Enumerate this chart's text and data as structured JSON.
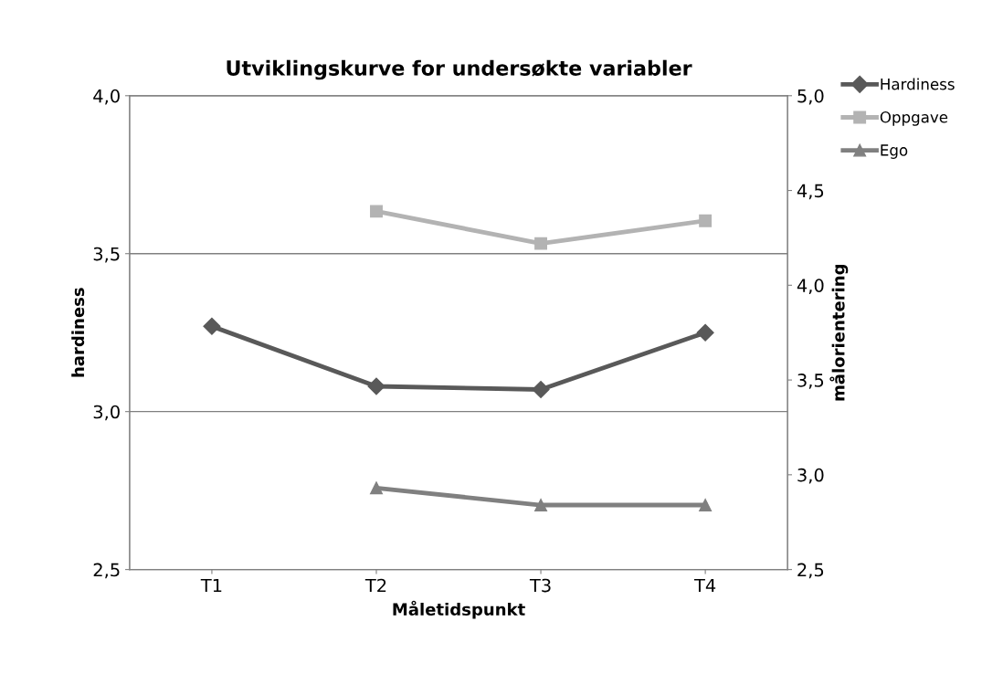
{
  "chart_data": {
    "type": "line",
    "title": "Utviklingskurve for undersøkte variabler",
    "xlabel": "Måletidspunkt",
    "ylabel": "hardiness",
    "y2label": "målorientering",
    "categories": [
      "T1",
      "T2",
      "T3",
      "T4"
    ],
    "series": [
      {
        "name": "Hardiness",
        "color": "#595959",
        "marker": "diamond",
        "values": [
          3.27,
          3.08,
          3.07,
          3.25
        ]
      },
      {
        "name": "Oppgave",
        "color": "#b3b3b3",
        "marker": "square",
        "axis": "y2",
        "values": [
          null,
          4.39,
          4.22,
          4.34
        ]
      },
      {
        "name": "Ego",
        "color": "#808080",
        "marker": "triangle",
        "axis": "y2",
        "values": [
          null,
          2.93,
          2.84,
          2.84
        ]
      }
    ],
    "ylim": [
      2.5,
      4.0
    ],
    "yticks": [
      {
        "value": 2.5,
        "label": "2,5"
      },
      {
        "value": 3.0,
        "label": "3,0"
      },
      {
        "value": 3.5,
        "label": "3,5"
      },
      {
        "value": 4.0,
        "label": "4,0"
      }
    ],
    "y2lim": [
      2.5,
      5.0
    ],
    "y2ticks": [
      {
        "value": 2.5,
        "label": "2,5"
      },
      {
        "value": 3.0,
        "label": "3,0"
      },
      {
        "value": 3.5,
        "label": "3,5"
      },
      {
        "value": 4.0,
        "label": "4,0"
      },
      {
        "value": 4.5,
        "label": "4,5"
      },
      {
        "value": 5.0,
        "label": "5,0"
      }
    ],
    "grid": "y",
    "legend": "top right"
  }
}
